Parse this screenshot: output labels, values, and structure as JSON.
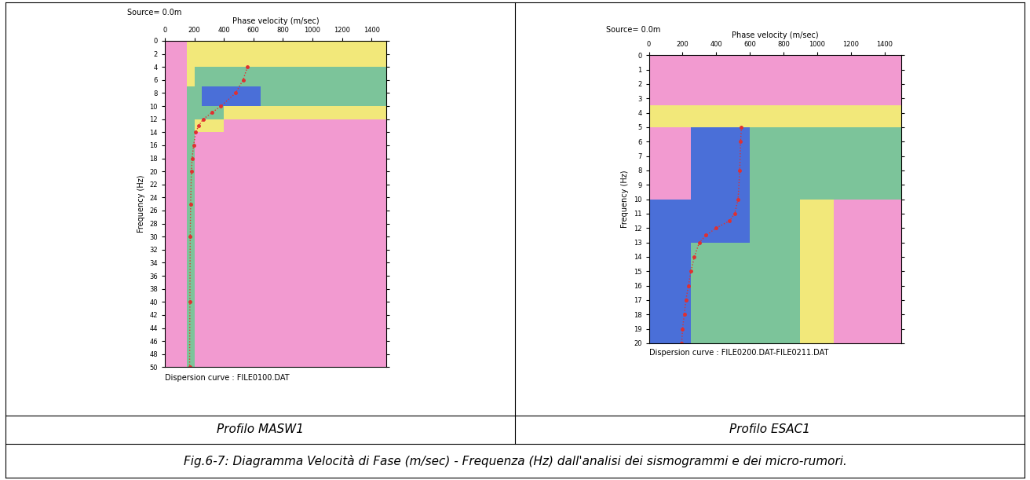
{
  "chart_data": [
    {
      "type": "heatmap",
      "panel_label": "Profilo MASW1",
      "source_label": "Source= 0.0m",
      "x_label": "Phase velocity (m/sec)",
      "y_label": "Frequency (Hz)",
      "footer": "Dispersion curve : FILE0100.DAT",
      "xlim": [
        0,
        1500
      ],
      "xticks": [
        0,
        200,
        400,
        600,
        800,
        1000,
        1200,
        1400
      ],
      "ylim": [
        50,
        0
      ],
      "yticks": [
        0,
        2,
        4,
        6,
        8,
        10,
        12,
        14,
        16,
        18,
        20,
        22,
        24,
        26,
        28,
        30,
        32,
        34,
        36,
        38,
        40,
        42,
        44,
        46,
        48,
        50
      ],
      "colors": [
        "#f29ad0",
        "#f2e87a",
        "#7cc49a",
        "#4a6fd8"
      ],
      "cell_x": [
        0,
        150,
        200,
        250,
        400,
        650,
        1500
      ],
      "cell_y": [
        0,
        4,
        7,
        10,
        12,
        14,
        50
      ],
      "cells": [
        [
          0,
          1,
          1,
          1,
          1,
          1
        ],
        [
          0,
          1,
          2,
          2,
          2,
          2
        ],
        [
          0,
          2,
          2,
          3,
          3,
          2
        ],
        [
          0,
          2,
          2,
          2,
          1,
          1
        ],
        [
          0,
          2,
          1,
          1,
          0,
          0
        ],
        [
          0,
          2,
          0,
          0,
          0,
          0
        ]
      ],
      "series": [
        {
          "type": "line",
          "color": "#e03030",
          "marker": "o",
          "line_style": "dotted",
          "x": [
            560,
            530,
            480,
            380,
            320,
            260,
            230,
            210,
            195,
            185,
            180,
            175,
            172,
            170,
            168
          ],
          "y": [
            4,
            6,
            8,
            10,
            11,
            12,
            13,
            14,
            16,
            18,
            20,
            25,
            30,
            40,
            50
          ]
        }
      ]
    },
    {
      "type": "heatmap",
      "panel_label": "Profilo ESAC1",
      "source_label": "Source= 0.0m",
      "x_label": "Phase velocity (m/sec)",
      "y_label": "Frequency (Hz)",
      "footer": "Dispersion curve : FILE0200.DAT-FILE0211.DAT",
      "xlim": [
        0,
        1500
      ],
      "xticks": [
        0,
        200,
        400,
        600,
        800,
        1000,
        1200,
        1400
      ],
      "ylim": [
        20,
        0
      ],
      "yticks": [
        0,
        1,
        2,
        3,
        4,
        5,
        6,
        7,
        8,
        9,
        10,
        11,
        12,
        13,
        14,
        15,
        16,
        17,
        18,
        19,
        20
      ],
      "colors": [
        "#f29ad0",
        "#f2e87a",
        "#7cc49a",
        "#4a6fd8"
      ],
      "cell_x": [
        0,
        250,
        600,
        900,
        1100,
        1500
      ],
      "cell_y": [
        0,
        3.5,
        5,
        10,
        13,
        20
      ],
      "cells": [
        [
          0,
          0,
          0,
          0,
          0
        ],
        [
          1,
          1,
          1,
          1,
          1
        ],
        [
          0,
          3,
          2,
          2,
          2
        ],
        [
          3,
          3,
          2,
          1,
          0
        ],
        [
          3,
          2,
          2,
          1,
          0
        ]
      ],
      "series": [
        {
          "type": "line",
          "color": "#e03030",
          "marker": "o",
          "line_style": "dotted",
          "x": [
            550,
            545,
            540,
            530,
            510,
            480,
            400,
            340,
            300,
            270,
            250,
            235,
            220,
            210,
            200,
            195
          ],
          "y": [
            5,
            6,
            8,
            10,
            11,
            11.5,
            12,
            12.5,
            13,
            14,
            15,
            16,
            17,
            18,
            19,
            20
          ]
        }
      ]
    }
  ],
  "caption": "Fig.6-7: Diagramma Velocità di Fase (m/sec) - Frequenza (Hz) dall'analisi dei sismogrammi e dei micro-rumori."
}
